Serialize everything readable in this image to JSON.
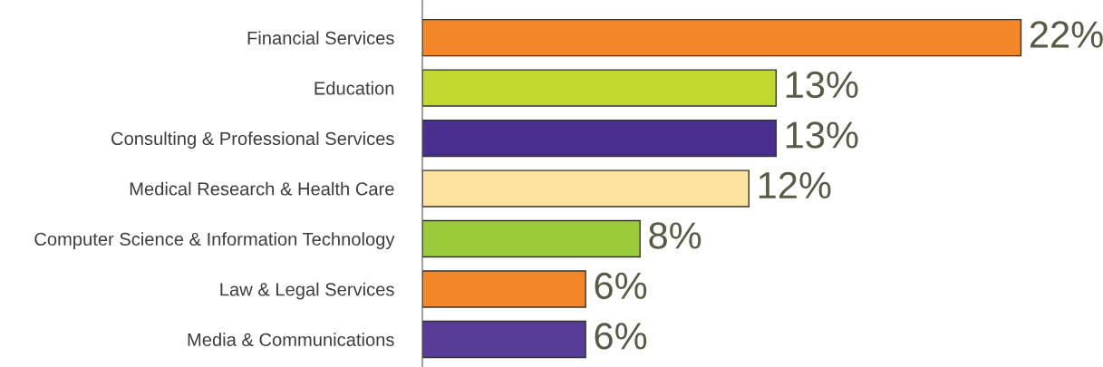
{
  "chart_data": {
    "type": "bar",
    "orientation": "horizontal",
    "categories": [
      "Financial Services",
      "Education",
      "Consulting & Professional Services",
      "Medical Research & Health Care",
      "Computer Science & Information Technology",
      "Law & Legal Services",
      "Media & Communications"
    ],
    "values": [
      22,
      13,
      13,
      12,
      8,
      6,
      6
    ],
    "value_labels": [
      "22%",
      "13%",
      "13%",
      "12%",
      "8%",
      "6%",
      "6%"
    ],
    "colors": [
      "#f4862a",
      "#c2d82e",
      "#482e8e",
      "#fee39f",
      "#9acb3b",
      "#f4862a",
      "#573d97"
    ],
    "grid": false,
    "legend": false
  }
}
